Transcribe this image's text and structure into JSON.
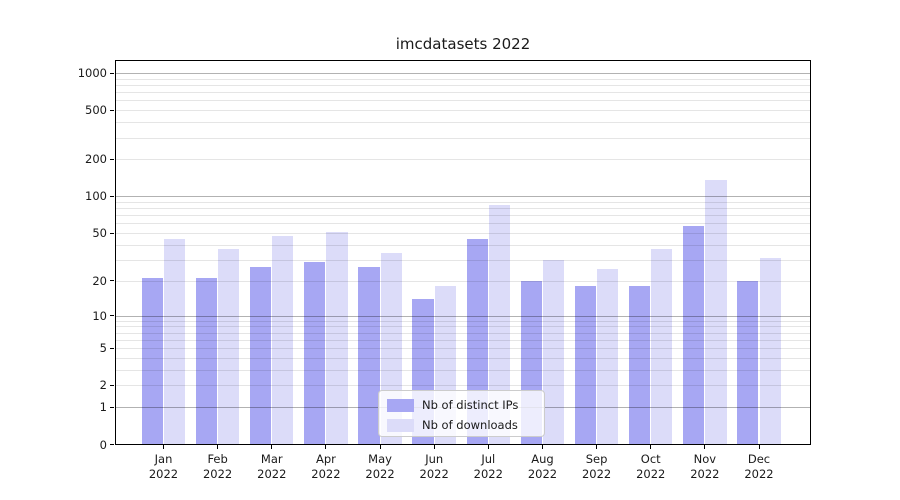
{
  "title": "imcdatasets 2022",
  "colors": {
    "bar_ips": "#a7a7f3",
    "bar_downloads": "#dcdcf9",
    "grid_major": "rgba(0,0,0,0.30)",
    "grid_minor": "rgba(0,0,0,0.10)",
    "spine": "#000000",
    "text": "#1a1a1a",
    "legend_border": "#cccccc",
    "legend_bg": "rgba(255,255,255,0.8)"
  },
  "legend": {
    "items": [
      {
        "label": "Nb of distinct IPs",
        "series": "ips"
      },
      {
        "label": "Nb of downloads",
        "series": "downloads"
      }
    ]
  },
  "chart_data": {
    "type": "bar",
    "title": "imcdatasets 2022",
    "categories": [
      "Jan 2022",
      "Feb 2022",
      "Mar 2022",
      "Apr 2022",
      "May 2022",
      "Jun 2022",
      "Jul 2022",
      "Aug 2022",
      "Sep 2022",
      "Oct 2022",
      "Nov 2022",
      "Dec 2022"
    ],
    "series": [
      {
        "name": "Nb of distinct IPs",
        "color": "#a7a7f3",
        "values": [
          21,
          21,
          26,
          29,
          26,
          14,
          45,
          20,
          18,
          18,
          57,
          20
        ]
      },
      {
        "name": "Nb of downloads",
        "color": "#dcdcf9",
        "values": [
          45,
          37,
          47,
          51,
          34,
          18,
          85,
          30,
          25,
          37,
          136,
          31
        ]
      }
    ],
    "yscale": "log1p",
    "yticks": [
      0,
      1,
      2,
      5,
      10,
      20,
      50,
      100,
      200,
      500,
      1000
    ],
    "grid_major_at": [
      1,
      10,
      100,
      1000
    ],
    "ylim": [
      0,
      1274
    ],
    "grid": true,
    "legend_position": "lower center"
  }
}
